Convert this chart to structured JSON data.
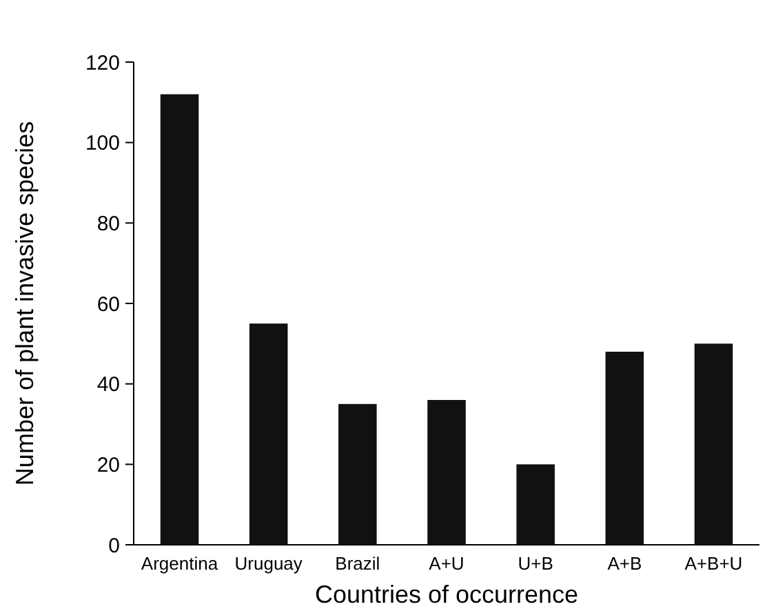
{
  "chart_data": {
    "type": "bar",
    "xlabel": "Countries of occurrence",
    "ylabel": "Number of plant invasive species",
    "categories": [
      "Argentina",
      "Uruguay",
      "Brazil",
      "A+U",
      "U+B",
      "A+B",
      "A+B+U"
    ],
    "values": [
      112,
      55,
      35,
      36,
      20,
      48,
      50
    ],
    "color": "#111111",
    "ylim": [
      0,
      120
    ],
    "yticks": [
      0,
      20,
      40,
      60,
      80,
      100,
      120
    ],
    "grid": false
  }
}
